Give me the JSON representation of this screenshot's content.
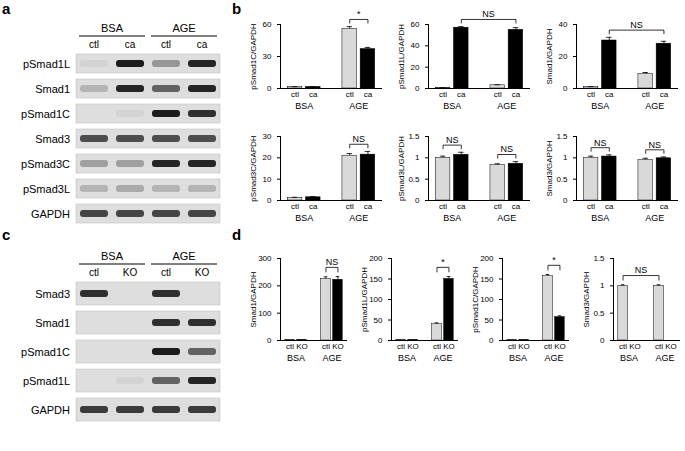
{
  "panels": [
    "a",
    "b",
    "c",
    "d"
  ],
  "blots": [
    {
      "groups": [
        "BSA",
        "AGE"
      ],
      "lanes": [
        "ctl",
        "ca",
        "ctl",
        "ca"
      ],
      "rows": [
        {
          "label": "pSmad1L",
          "bands": [
            0.05,
            0.95,
            0.35,
            0.9
          ]
        },
        {
          "label": "Smad1",
          "bands": [
            0.2,
            0.9,
            0.6,
            0.9
          ]
        },
        {
          "label": "pSmad1C",
          "bands": [
            0,
            0.05,
            0.95,
            0.85
          ]
        },
        {
          "label": "Smad3",
          "bands": [
            0.7,
            0.7,
            0.7,
            0.7
          ]
        },
        {
          "label": "pSmad3C",
          "bands": [
            0.3,
            0.3,
            0.9,
            0.9
          ]
        },
        {
          "label": "pSmad3L",
          "bands": [
            0.2,
            0.25,
            0.2,
            0.2
          ]
        },
        {
          "label": "GAPDH",
          "bands": [
            0.75,
            0.75,
            0.75,
            0.75
          ]
        }
      ]
    },
    {
      "groups": [
        "BSA",
        "AGE"
      ],
      "lanes": [
        "ctl",
        "KO",
        "ctl",
        "KO"
      ],
      "rows": [
        {
          "label": "Smad3",
          "bands": [
            0.85,
            0,
            0.85,
            0
          ]
        },
        {
          "label": "Smad1",
          "bands": [
            0,
            0,
            0.85,
            0.85
          ]
        },
        {
          "label": "pSmad1C",
          "bands": [
            0,
            0,
            0.95,
            0.6
          ]
        },
        {
          "label": "pSmad1L",
          "bands": [
            0,
            0.05,
            0.6,
            0.9
          ]
        },
        {
          "label": "GAPDH",
          "bands": [
            0.8,
            0.8,
            0.8,
            0.8
          ]
        }
      ]
    }
  ],
  "chart_data": [
    {
      "type": "bar",
      "panel": "b",
      "ylabel": "pSmad1C/GAPDH",
      "categories": [
        "BSA",
        "AGE"
      ],
      "series": [
        {
          "name": "ctl",
          "color": "#d9d9d9",
          "values": [
            1.5,
            56
          ],
          "errors": [
            0.2,
            2
          ]
        },
        {
          "name": "ca",
          "color": "#000000",
          "values": [
            1.5,
            37
          ],
          "errors": [
            0.2,
            1.5
          ]
        }
      ],
      "ylim": [
        0,
        60
      ],
      "yticks": [
        0,
        30,
        60
      ],
      "annotations": [
        {
          "text": "*",
          "from": [
            "AGE",
            "ctl"
          ],
          "to": [
            "AGE",
            "ca"
          ]
        }
      ]
    },
    {
      "type": "bar",
      "panel": "b",
      "ylabel": "pSmad1L/GAPDH",
      "categories": [
        "BSA",
        "AGE"
      ],
      "series": [
        {
          "name": "ctl",
          "color": "#d9d9d9",
          "values": [
            0.5,
            3
          ],
          "errors": [
            0.2,
            0.5
          ]
        },
        {
          "name": "ca",
          "color": "#000000",
          "values": [
            57,
            55
          ],
          "errors": [
            1,
            2
          ]
        }
      ],
      "ylim": [
        0,
        60
      ],
      "yticks": [
        0,
        20,
        40,
        60
      ],
      "annotations": [
        {
          "text": "NS",
          "from": [
            "BSA",
            "ca"
          ],
          "to": [
            "AGE",
            "ca"
          ]
        }
      ]
    },
    {
      "type": "bar",
      "panel": "b",
      "ylabel": "Smad1/GAPDH",
      "categories": [
        "BSA",
        "AGE"
      ],
      "series": [
        {
          "name": "ctl",
          "color": "#d9d9d9",
          "values": [
            1,
            9
          ],
          "errors": [
            0.2,
            1
          ]
        },
        {
          "name": "ca",
          "color": "#000000",
          "values": [
            30,
            28
          ],
          "errors": [
            2,
            1.5
          ]
        }
      ],
      "ylim": [
        0,
        40
      ],
      "yticks": [
        0,
        20,
        40
      ],
      "annotations": [
        {
          "text": "NS",
          "from": [
            "BSA",
            "ca"
          ],
          "to": [
            "AGE",
            "ca"
          ]
        }
      ]
    },
    {
      "type": "bar",
      "panel": "b",
      "ylabel": "pSmad3C/GAPDH",
      "categories": [
        "BSA",
        "AGE"
      ],
      "series": [
        {
          "name": "ctl",
          "color": "#d9d9d9",
          "values": [
            1.2,
            21
          ],
          "errors": [
            0.3,
            1
          ]
        },
        {
          "name": "ca",
          "color": "#000000",
          "values": [
            1.5,
            21.5
          ],
          "errors": [
            0.3,
            1.5
          ]
        }
      ],
      "ylim": [
        0,
        30
      ],
      "yticks": [
        0,
        10,
        20,
        30
      ],
      "annotations": [
        {
          "text": "NS",
          "from": [
            "AGE",
            "ctl"
          ],
          "to": [
            "AGE",
            "ca"
          ]
        }
      ]
    },
    {
      "type": "bar",
      "panel": "b",
      "ylabel": "pSmad3L/GAPDH",
      "categories": [
        "BSA",
        "AGE"
      ],
      "series": [
        {
          "name": "ctl",
          "color": "#d9d9d9",
          "values": [
            1.0,
            0.83
          ],
          "errors": [
            0.04,
            0.03
          ]
        },
        {
          "name": "ca",
          "color": "#000000",
          "values": [
            1.07,
            0.86
          ],
          "errors": [
            0.06,
            0.05
          ]
        }
      ],
      "ylim": [
        0,
        1.5
      ],
      "yticks": [
        0,
        0.5,
        1,
        1.5
      ],
      "annotations": [
        {
          "text": "NS",
          "from": [
            "BSA",
            "ctl"
          ],
          "to": [
            "BSA",
            "ca"
          ]
        },
        {
          "text": "NS",
          "from": [
            "AGE",
            "ctl"
          ],
          "to": [
            "AGE",
            "ca"
          ]
        }
      ]
    },
    {
      "type": "bar",
      "panel": "b",
      "ylabel": "Smad3/GAPDH",
      "categories": [
        "BSA",
        "AGE"
      ],
      "series": [
        {
          "name": "ctl",
          "color": "#d9d9d9",
          "values": [
            1.0,
            0.95
          ],
          "errors": [
            0.04,
            0.04
          ]
        },
        {
          "name": "ca",
          "color": "#000000",
          "values": [
            1.03,
            0.99
          ],
          "errors": [
            0.04,
            0.03
          ]
        }
      ],
      "ylim": [
        0,
        1.5
      ],
      "yticks": [
        0,
        0.5,
        1,
        1.5
      ],
      "annotations": [
        {
          "text": "NS",
          "from": [
            "BSA",
            "ctl"
          ],
          "to": [
            "BSA",
            "ca"
          ]
        },
        {
          "text": "NS",
          "from": [
            "AGE",
            "ctl"
          ],
          "to": [
            "AGE",
            "ca"
          ]
        }
      ]
    },
    {
      "type": "bar",
      "panel": "d",
      "ylabel": "Smad1/GAPDH",
      "categories": [
        "BSA",
        "AGE"
      ],
      "series": [
        {
          "name": "ctl",
          "color": "#d9d9d9",
          "values": [
            2,
            225
          ],
          "errors": [
            0,
            8
          ]
        },
        {
          "name": "KO",
          "color": "#000000",
          "values": [
            2,
            222
          ],
          "errors": [
            0,
            12
          ]
        }
      ],
      "ylim": [
        0,
        300
      ],
      "yticks": [
        0,
        100,
        200,
        300
      ],
      "annotations": [
        {
          "text": "NS",
          "from": [
            "AGE",
            "ctl"
          ],
          "to": [
            "AGE",
            "KO"
          ]
        }
      ]
    },
    {
      "type": "bar",
      "panel": "d",
      "ylabel": "pSmad1L/GAPDH",
      "categories": [
        "BSA",
        "AGE"
      ],
      "series": [
        {
          "name": "ctl",
          "color": "#d9d9d9",
          "values": [
            1,
            40
          ],
          "errors": [
            0,
            3
          ]
        },
        {
          "name": "KO",
          "color": "#000000",
          "values": [
            1,
            150
          ],
          "errors": [
            0,
            6
          ]
        }
      ],
      "ylim": [
        0,
        200
      ],
      "yticks": [
        0,
        50,
        100,
        150,
        200
      ],
      "annotations": [
        {
          "text": "*",
          "from": [
            "AGE",
            "ctl"
          ],
          "to": [
            "AGE",
            "KO"
          ]
        }
      ]
    },
    {
      "type": "bar",
      "panel": "d",
      "ylabel": "pSmad1C/GAPDH",
      "categories": [
        "BSA",
        "AGE"
      ],
      "series": [
        {
          "name": "ctl",
          "color": "#d9d9d9",
          "values": [
            1,
            157
          ],
          "errors": [
            0,
            4
          ]
        },
        {
          "name": "KO",
          "color": "#000000",
          "values": [
            1,
            57
          ],
          "errors": [
            0,
            3
          ]
        }
      ],
      "ylim": [
        0,
        200
      ],
      "yticks": [
        0,
        50,
        100,
        150,
        200
      ],
      "annotations": [
        {
          "text": "*",
          "from": [
            "AGE",
            "ctl"
          ],
          "to": [
            "AGE",
            "KO"
          ]
        }
      ]
    },
    {
      "type": "bar",
      "panel": "d",
      "ylabel": "Smad3/GAPDH",
      "categories": [
        "BSA",
        "AGE"
      ],
      "series": [
        {
          "name": "ctl",
          "color": "#d9d9d9",
          "values": [
            1.0,
            1.0
          ],
          "errors": [
            0.02,
            0.02
          ]
        },
        {
          "name": "KO",
          "color": "#000000",
          "values": [
            0,
            0
          ],
          "errors": [
            0,
            0
          ]
        }
      ],
      "ylim": [
        0,
        1.5
      ],
      "yticks": [
        0,
        0.5,
        1,
        1.5
      ],
      "annotations": [
        {
          "text": "NS",
          "from": [
            "BSA",
            "ctl"
          ],
          "to": [
            "AGE",
            "ctl"
          ]
        }
      ]
    }
  ]
}
